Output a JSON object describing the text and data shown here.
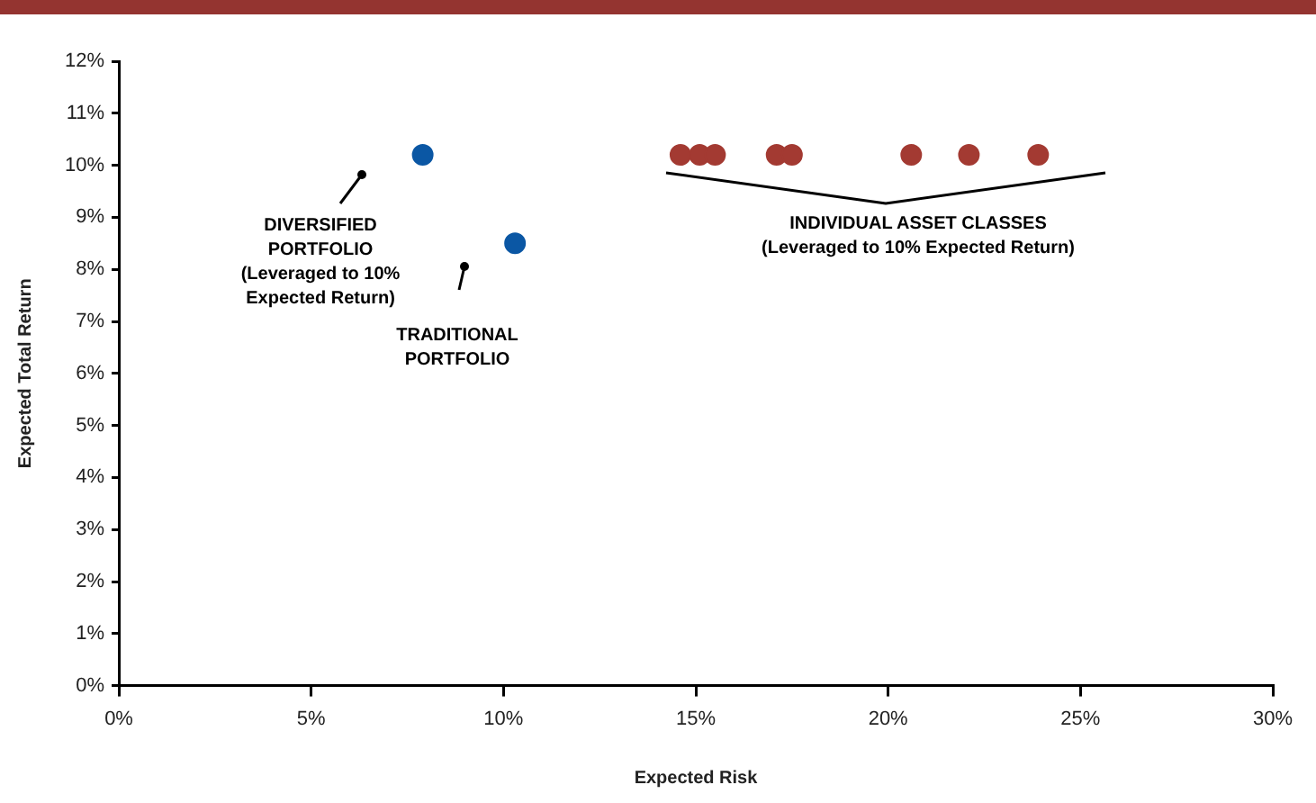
{
  "chart_data": {
    "type": "scatter",
    "xlabel": "Expected Risk",
    "ylabel": "Expected Total Return",
    "series": [
      {
        "color": "#0b57a4",
        "x": [
          7.9,
          10.3
        ],
        "values": [
          10.2,
          8.5
        ]
      },
      {
        "color": "#a33a32",
        "x": [
          14.6,
          15.1,
          15.5,
          17.1,
          17.5,
          20.6,
          22.1,
          23.9
        ],
        "values": [
          10.2,
          10.2,
          10.2,
          10.2,
          10.2,
          10.2,
          10.2,
          10.2
        ]
      }
    ],
    "xlim": [
      0,
      30
    ],
    "xticks": [
      {
        "value": 0,
        "label": "0%"
      },
      {
        "value": 5,
        "label": "5%"
      },
      {
        "value": 10,
        "label": "10%"
      },
      {
        "value": 15,
        "label": "15%"
      },
      {
        "value": 20,
        "label": "20%"
      },
      {
        "value": 25,
        "label": "25%"
      },
      {
        "value": 30,
        "label": "30%"
      }
    ],
    "ylim": [
      0,
      12
    ],
    "yticks": [
      {
        "value": 0,
        "label": "0%"
      },
      {
        "value": 1,
        "label": "1%"
      },
      {
        "value": 2,
        "label": "2%"
      },
      {
        "value": 3,
        "label": "3%"
      },
      {
        "value": 4,
        "label": "4%"
      },
      {
        "value": 5,
        "label": "5%"
      },
      {
        "value": 6,
        "label": "6%"
      },
      {
        "value": 7,
        "label": "7%"
      },
      {
        "value": 8,
        "label": "8%"
      },
      {
        "value": 9,
        "label": "9%"
      },
      {
        "value": 10,
        "label": "10%"
      },
      {
        "value": 11,
        "label": "11%"
      },
      {
        "value": 12,
        "label": "12%"
      }
    ],
    "grid": false,
    "legend": false,
    "marker": "circle",
    "annotations": [
      "DIVERSIFIED\nPORTFOLIO\n(Leveraged to 10%\nExpected Return)",
      "TRADITIONAL\nPORTFOLIO",
      "INDIVIDUAL ASSET CLASSES\n(Leveraged to 10% Expected Return)"
    ]
  }
}
